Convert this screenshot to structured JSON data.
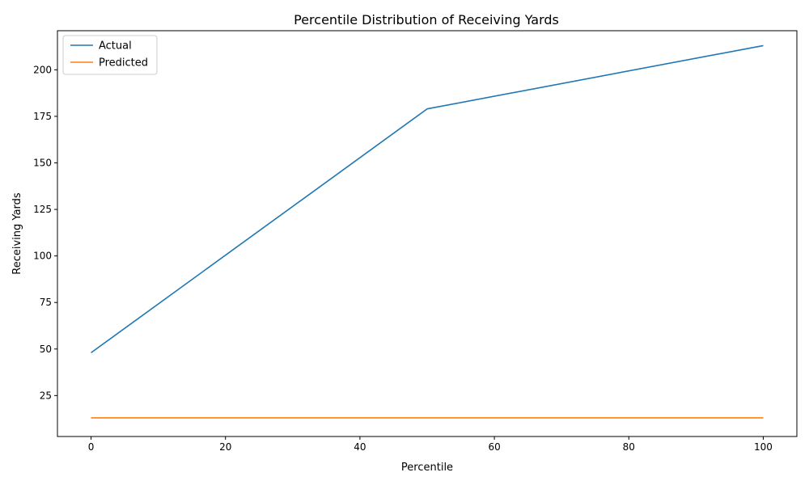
{
  "chart_data": {
    "type": "line",
    "title": "Percentile Distribution of Receiving Yards",
    "xlabel": "Percentile",
    "ylabel": "Receiving Yards",
    "xlim": [
      -5,
      105
    ],
    "ylim": [
      3,
      221
    ],
    "xticks": [
      0,
      20,
      40,
      60,
      80,
      100
    ],
    "yticks": [
      25,
      50,
      75,
      100,
      125,
      150,
      175,
      200
    ],
    "grid": false,
    "legend_position": "top-left",
    "series": [
      {
        "name": "Actual",
        "color": "#1f77b4",
        "x": [
          0,
          50,
          100
        ],
        "y": [
          48,
          179,
          213
        ]
      },
      {
        "name": "Predicted",
        "color": "#ff7f0e",
        "x": [
          0,
          100
        ],
        "y": [
          13,
          13
        ]
      }
    ]
  }
}
